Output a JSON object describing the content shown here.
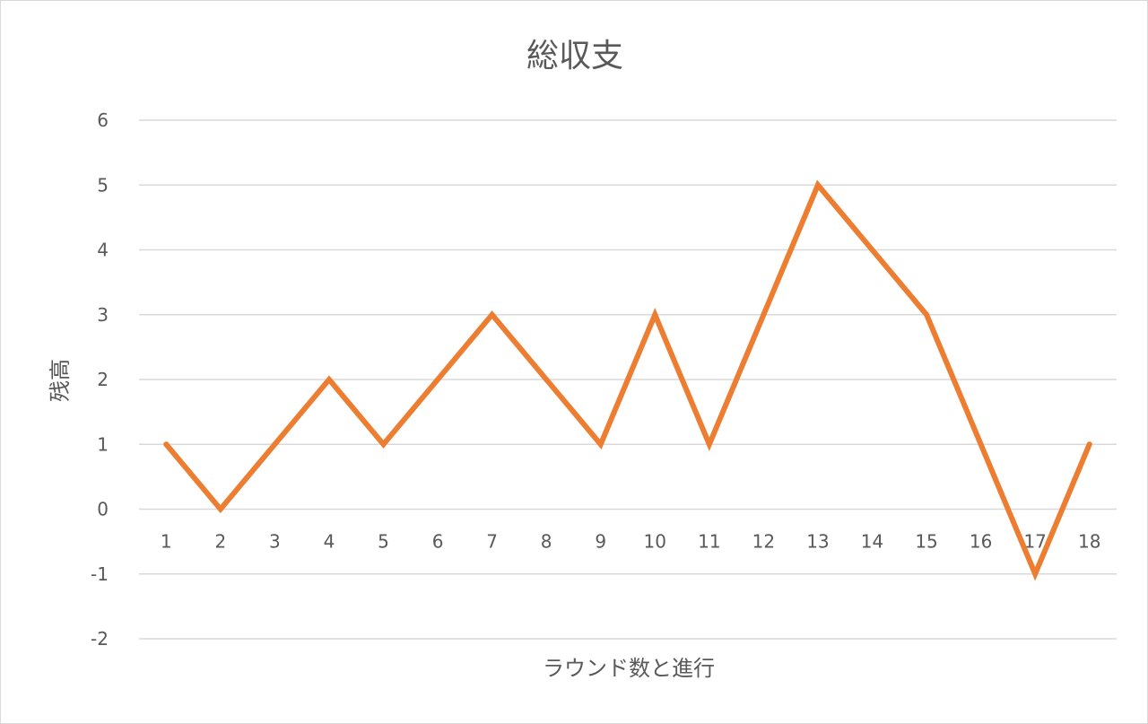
{
  "chart_data": {
    "type": "line",
    "title": "総収支",
    "xlabel": "ラウンド数と進行",
    "ylabel": "残高",
    "categories": [
      "1",
      "2",
      "3",
      "4",
      "5",
      "6",
      "7",
      "8",
      "9",
      "10",
      "11",
      "12",
      "13",
      "14",
      "15",
      "16",
      "17",
      "18"
    ],
    "series": [
      {
        "values": [
          1,
          0,
          1,
          2,
          1,
          2,
          3,
          2,
          1,
          3,
          1,
          3,
          5,
          4,
          3,
          1,
          -1,
          1
        ]
      }
    ],
    "ylim": [
      -2,
      6
    ],
    "yticks": [
      -2,
      -1,
      0,
      1,
      2,
      3,
      4,
      5,
      6
    ],
    "grid": true,
    "legend": "none",
    "colors": {
      "line": "#ED7D31",
      "grid": "#D9D9D9",
      "text": "#595959"
    }
  }
}
